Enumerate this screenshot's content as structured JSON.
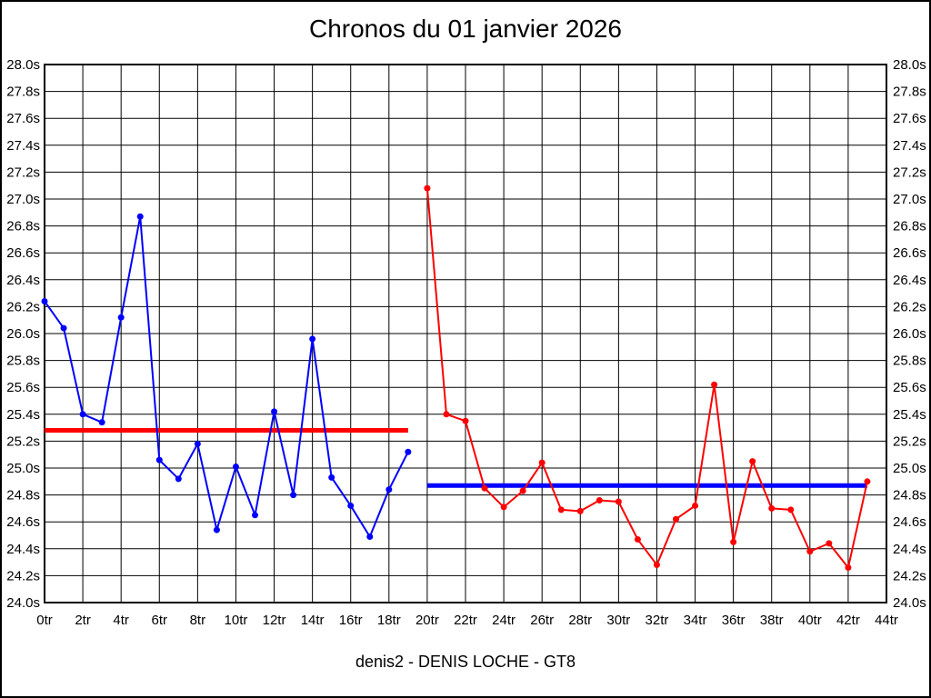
{
  "title": "Chronos du 01 janvier 2026",
  "subtitle": "denis2 - DENIS LOCHE - GT8",
  "colors": {
    "series1_blue": "#0000ff",
    "series2_red": "#ff0000",
    "grid": "#000000",
    "background": "#ffffff"
  },
  "chart_data": {
    "type": "line",
    "title": "Chronos du 01 janvier 2026",
    "subtitle": "denis2 - DENIS LOCHE - GT8",
    "xlim": [
      0,
      44
    ],
    "ylim": [
      24.0,
      28.0
    ],
    "x_tick_step": 2,
    "y_tick_step": 0.2,
    "grid": true,
    "x_unit": "tr",
    "y_unit": "s",
    "x_ticks": [
      "0tr",
      "2tr",
      "4tr",
      "6tr",
      "8tr",
      "10tr",
      "12tr",
      "14tr",
      "16tr",
      "18tr",
      "20tr",
      "22tr",
      "24tr",
      "26tr",
      "28tr",
      "30tr",
      "32tr",
      "34tr",
      "36tr",
      "38tr",
      "40tr",
      "42tr",
      "44tr"
    ],
    "y_ticks": [
      "28.0s",
      "27.8s",
      "27.6s",
      "27.4s",
      "27.2s",
      "27.0s",
      "26.8s",
      "26.6s",
      "26.4s",
      "26.2s",
      "26.0s",
      "25.8s",
      "25.6s",
      "25.4s",
      "25.2s",
      "25.0s",
      "24.8s",
      "24.6s",
      "24.4s",
      "24.2s",
      "24.0s"
    ],
    "series": [
      {
        "name": "session-1-blue",
        "color": "#0000ff",
        "x": [
          0,
          1,
          2,
          3,
          4,
          5,
          6,
          7,
          8,
          9,
          10,
          11,
          12,
          13,
          14,
          15,
          16,
          17,
          18,
          19
        ],
        "values": [
          26.24,
          26.04,
          25.4,
          25.34,
          26.12,
          26.87,
          25.06,
          24.92,
          25.18,
          24.54,
          25.01,
          24.65,
          25.42,
          24.8,
          25.96,
          24.93,
          24.72,
          24.49,
          24.84,
          25.12
        ]
      },
      {
        "name": "session-2-red",
        "color": "#ff0000",
        "x": [
          20,
          21,
          22,
          23,
          24,
          25,
          26,
          27,
          28,
          29,
          30,
          31,
          32,
          33,
          34,
          35,
          36,
          37,
          38,
          39,
          40,
          41,
          42,
          43
        ],
        "values": [
          27.08,
          25.4,
          25.35,
          24.85,
          24.71,
          24.83,
          25.04,
          24.69,
          24.68,
          24.76,
          24.75,
          24.47,
          24.28,
          24.62,
          24.72,
          25.62,
          24.45,
          25.05,
          24.7,
          24.69,
          24.38,
          24.44,
          24.26,
          24.9
        ]
      }
    ],
    "mean_lines": [
      {
        "name": "mean-session-1",
        "value": 25.28,
        "color": "#ff0000",
        "x_start": 0,
        "x_end": 19
      },
      {
        "name": "mean-session-2",
        "value": 24.87,
        "color": "#0000ff",
        "x_start": 20,
        "x_end": 43
      }
    ]
  }
}
